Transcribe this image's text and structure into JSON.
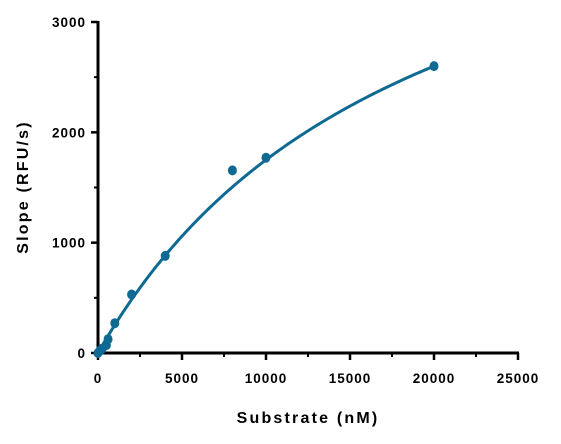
{
  "chart_data": {
    "type": "scatter",
    "title": "",
    "xlabel": "Substrate (nM)",
    "ylabel": "Slope (RFU/s)",
    "xlim": [
      0,
      25000
    ],
    "ylim": [
      0,
      3000
    ],
    "x_ticks": [
      0,
      5000,
      10000,
      15000,
      20000,
      25000
    ],
    "y_ticks": [
      0,
      1000,
      2000,
      3000
    ],
    "x_tick_labels": [
      "0",
      "5000",
      "10000",
      "15000",
      "20000",
      "25000"
    ],
    "y_tick_labels": [
      "0",
      "1000",
      "2000",
      "3000"
    ],
    "grid": false,
    "legend": "none",
    "series": [
      {
        "points": [
          {
            "x": 0,
            "y": 0
          },
          {
            "x": 125,
            "y": 22
          },
          {
            "x": 250,
            "y": 40
          },
          {
            "x": 500,
            "y": 72
          },
          {
            "x": 600,
            "y": 125
          },
          {
            "x": 1000,
            "y": 270
          },
          {
            "x": 2000,
            "y": 530
          },
          {
            "x": 4000,
            "y": 880
          },
          {
            "x": 8000,
            "y": 1655
          },
          {
            "x": 10000,
            "y": 1770
          },
          {
            "x": 20000,
            "y": 2600
          }
        ]
      }
    ],
    "fit_curve": {
      "type": "michaelis-menten",
      "vmax": 5050,
      "km": 18850,
      "x_range": [
        0,
        20000
      ]
    },
    "colors": {
      "series": "#0f6a93",
      "axes": "#000000"
    }
  }
}
